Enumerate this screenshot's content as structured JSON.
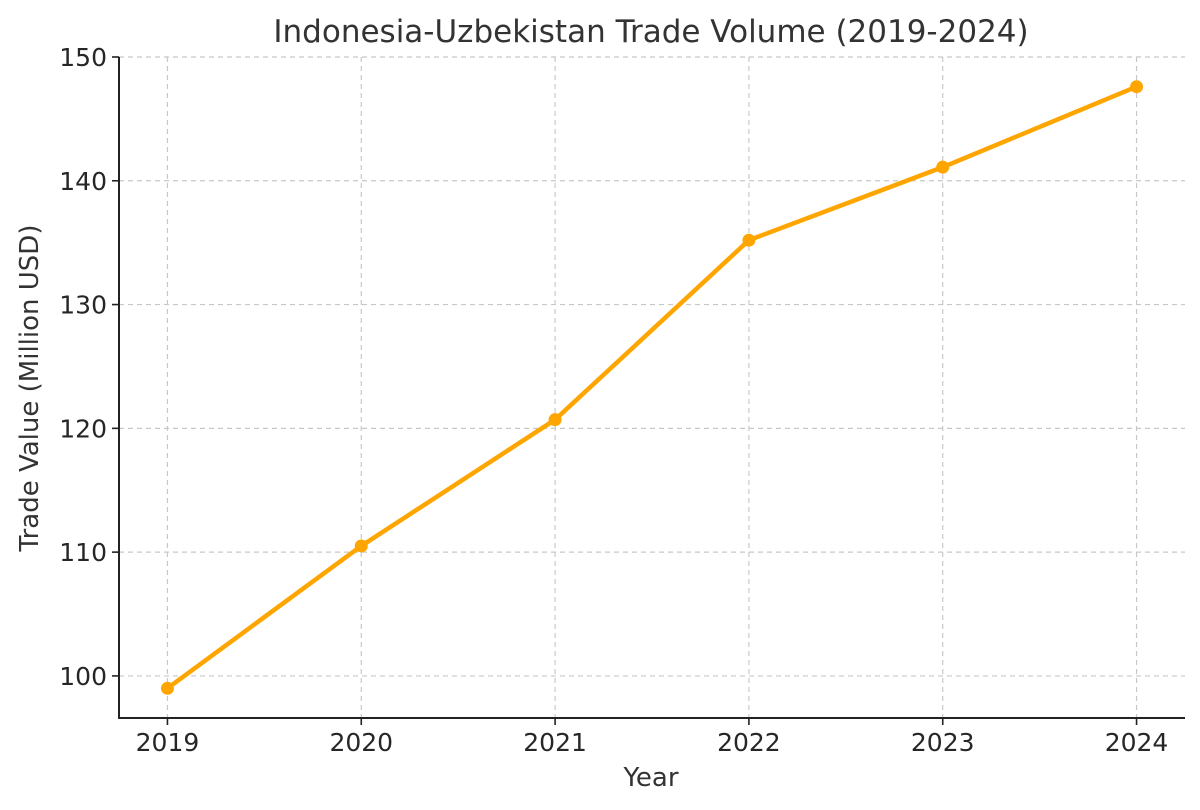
{
  "chart_data": {
    "type": "line",
    "title": "Indonesia-Uzbekistan Trade Volume (2019-2024)",
    "xlabel": "Year",
    "ylabel": "Trade Value (Million USD)",
    "categories": [
      "2019",
      "2020",
      "2021",
      "2022",
      "2023",
      "2024"
    ],
    "x": [
      2019,
      2020,
      2021,
      2022,
      2023,
      2024
    ],
    "series": [
      {
        "values": [
          99.0,
          110.5,
          120.7,
          135.2,
          141.1,
          147.6
        ],
        "color": "#FFA500"
      }
    ],
    "yticks": [
      100,
      110,
      120,
      130,
      140,
      150
    ],
    "ylim": [
      96.6,
      150
    ],
    "xlim": [
      2018.75,
      2024.25
    ],
    "grid": true,
    "legend": "none",
    "marker": "circle"
  }
}
